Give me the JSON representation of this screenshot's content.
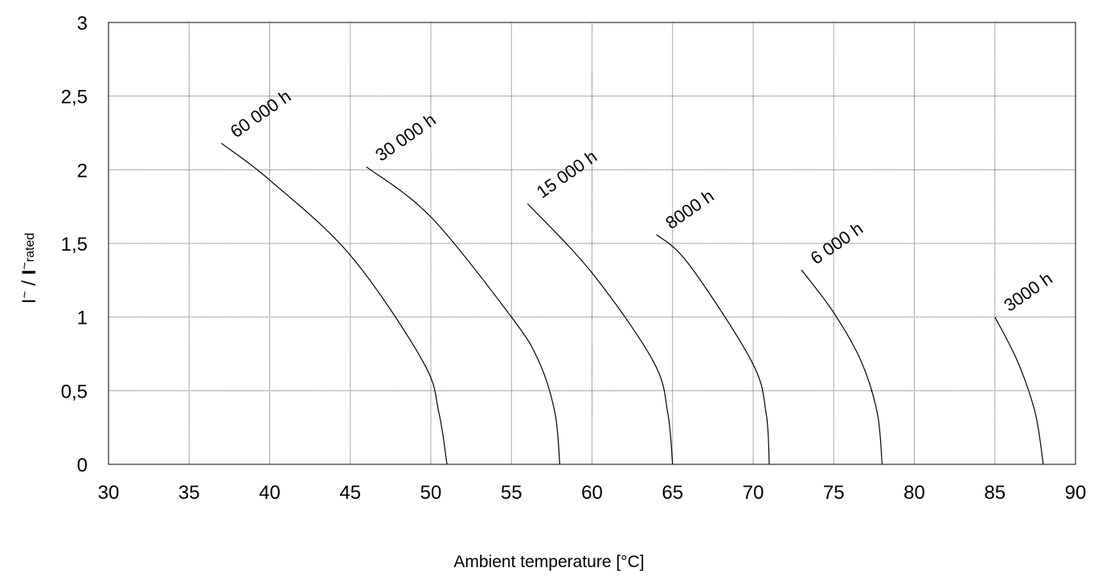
{
  "chart_data": {
    "type": "line",
    "title": "",
    "xlabel": "Ambient temperature [°C]",
    "ylabel": {
      "main": "I~ / I~",
      "subscript": "rated",
      "prefix": "I",
      "sup1": "~",
      "mid": " / ",
      "prefix2": "I",
      "sup2": "~"
    },
    "xlim": [
      30,
      90
    ],
    "ylim": [
      0,
      3
    ],
    "x_ticks": [
      "30",
      "35",
      "40",
      "45",
      "50",
      "55",
      "60",
      "65",
      "70",
      "75",
      "80",
      "85",
      "90"
    ],
    "y_ticks": [
      "0",
      "0,5",
      "1",
      "1,5",
      "2",
      "2,5",
      "3"
    ],
    "x_tick_values": [
      30,
      35,
      40,
      45,
      50,
      55,
      60,
      65,
      70,
      75,
      80,
      85,
      90
    ],
    "y_tick_values": [
      0,
      0.5,
      1,
      1.5,
      2,
      2.5,
      3
    ],
    "grid": true,
    "series": [
      {
        "name": "60 000 h",
        "x": [
          37,
          40,
          45,
          49.5,
          50.5,
          51
        ],
        "y": [
          2.18,
          1.93,
          1.42,
          0.7,
          0.35,
          0
        ]
      },
      {
        "name": "30 000 h",
        "x": [
          46,
          50,
          55,
          56.7,
          57.7,
          58
        ],
        "y": [
          2.02,
          1.68,
          1.0,
          0.7,
          0.35,
          0
        ]
      },
      {
        "name": "15 000 h",
        "x": [
          56,
          60,
          63.8,
          64.7,
          65
        ],
        "y": [
          1.77,
          1.3,
          0.7,
          0.35,
          0
        ]
      },
      {
        "name": "8000 h",
        "x": [
          64,
          66,
          69.9,
          70.8,
          71
        ],
        "y": [
          1.56,
          1.36,
          0.7,
          0.35,
          0
        ]
      },
      {
        "name": "6 000 h",
        "x": [
          73,
          75,
          76.7,
          77.7,
          78
        ],
        "y": [
          1.32,
          1.03,
          0.7,
          0.35,
          0
        ]
      },
      {
        "name": "3000 h",
        "x": [
          85,
          86.4,
          87.5,
          88
        ],
        "y": [
          1.0,
          0.7,
          0.35,
          0
        ]
      }
    ]
  }
}
